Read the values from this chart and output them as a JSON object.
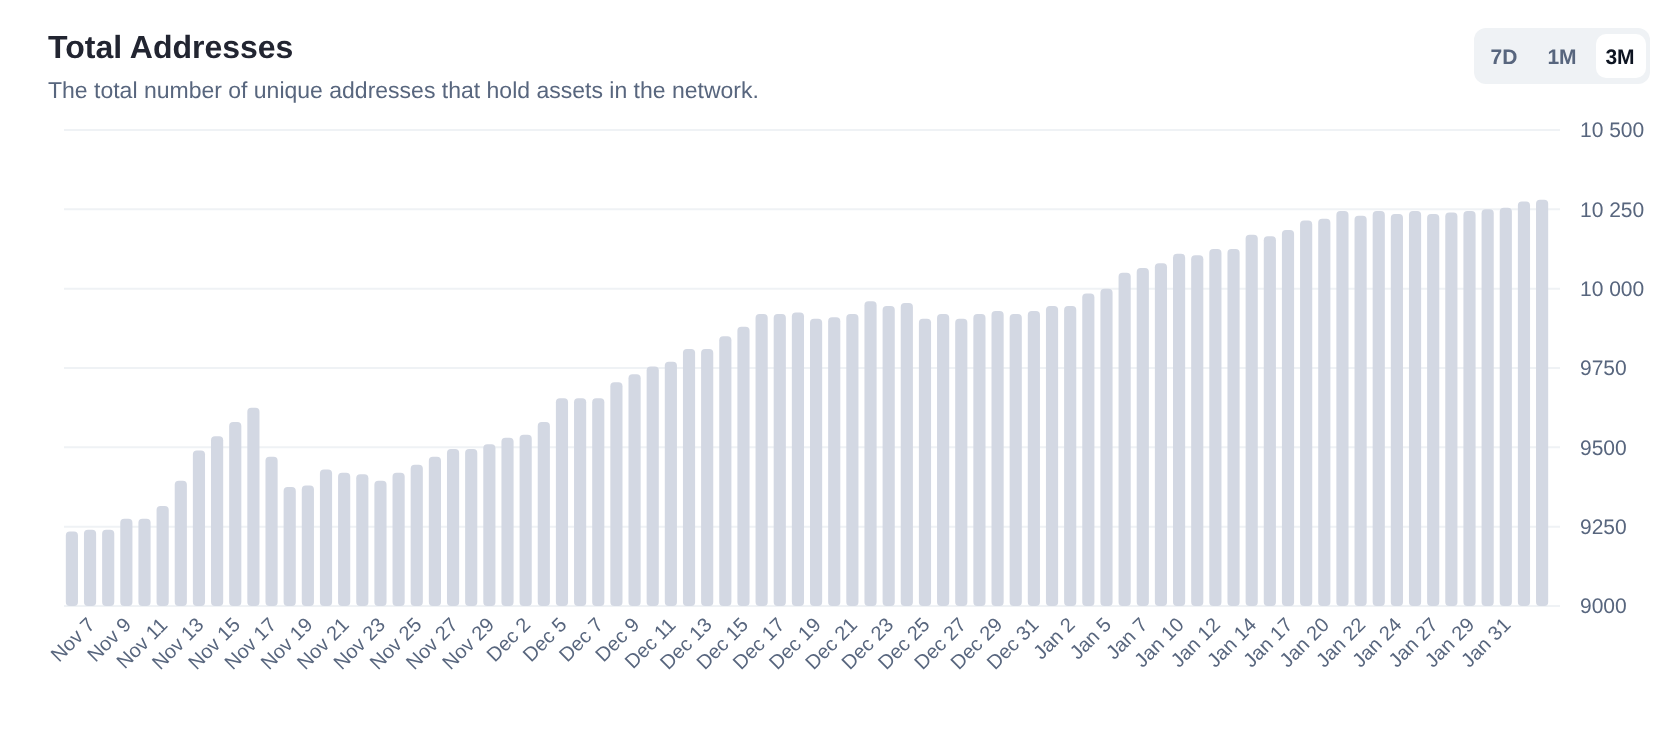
{
  "chart_data": {
    "type": "bar",
    "title": "Total Addresses",
    "subtitle": "The total number of unique addresses that hold assets in the network.",
    "annotations": [
      "7D",
      "1M",
      "3M"
    ],
    "categories": [
      null,
      "Nov 7",
      null,
      "Nov 9",
      null,
      "Nov 11",
      null,
      "Nov 13",
      null,
      "Nov 15",
      null,
      "Nov 17",
      null,
      "Nov 19",
      null,
      "Nov 21",
      null,
      "Nov 23",
      null,
      "Nov 25",
      null,
      "Nov 27",
      null,
      "Nov 29",
      null,
      "Dec 2",
      null,
      "Dec 5",
      null,
      "Dec 7",
      null,
      "Dec 9",
      null,
      "Dec 11",
      null,
      "Dec 13",
      null,
      "Dec 15",
      null,
      "Dec 17",
      null,
      "Dec 19",
      null,
      "Dec 21",
      null,
      "Dec 23",
      null,
      "Dec 25",
      null,
      "Dec 27",
      null,
      "Dec 29",
      null,
      "Dec 31",
      null,
      "Jan 2",
      null,
      "Jan 5",
      null,
      "Jan 7",
      null,
      "Jan 10",
      null,
      "Jan 12",
      null,
      "Jan 14",
      null,
      "Jan 17",
      null,
      "Jan 20",
      null,
      "Jan 22",
      null,
      "Jan 24",
      null,
      "Jan 27",
      null,
      "Jan 29",
      null,
      "Jan 31",
      null,
      null
    ],
    "values": [
      9235,
      9240,
      9240,
      9275,
      9275,
      9315,
      9395,
      9490,
      9535,
      9580,
      9625,
      9470,
      9375,
      9380,
      9430,
      9420,
      9415,
      9395,
      9420,
      9445,
      9470,
      9495,
      9495,
      9510,
      9530,
      9540,
      9580,
      9655,
      9655,
      9655,
      9705,
      9730,
      9755,
      9770,
      9810,
      9810,
      9850,
      9880,
      9920,
      9920,
      9925,
      9905,
      9910,
      9920,
      9960,
      9945,
      9955,
      9905,
      9920,
      9905,
      9920,
      9930,
      9920,
      9930,
      9945,
      9945,
      9985,
      10000,
      10050,
      10065,
      10080,
      10110,
      10105,
      10125,
      10125,
      10170,
      10165,
      10185,
      10215,
      10220,
      10245,
      10230,
      10245,
      10235,
      10245,
      10235,
      10240,
      10245,
      10250,
      10255,
      10275,
      10280
    ],
    "color": "#d3d8e3",
    "ylim": [
      9000,
      10500
    ],
    "yticks": [
      9000,
      9250,
      9500,
      9750,
      {
        "value": 10000,
        "label": "10 000"
      },
      {
        "value": 10250,
        "label": "10 250"
      },
      {
        "value": 10500,
        "label": "10 500"
      }
    ],
    "grid": "y"
  }
}
